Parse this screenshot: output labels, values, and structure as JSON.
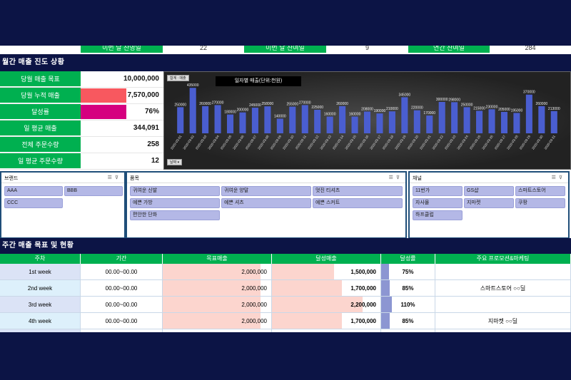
{
  "top_strip": {
    "cells": [
      "이번 달 잔영일",
      "22",
      "이번 달 잔여일",
      "9",
      "연간 잔여일",
      "284"
    ]
  },
  "monthly": {
    "header": "월간 매출 진도 상황",
    "kpis": [
      {
        "label": "당월 매출 목표",
        "value": "10,000,000"
      },
      {
        "label": "당월 누적 매출",
        "value": "7,570,000"
      },
      {
        "label": "달성률",
        "value": "76%"
      },
      {
        "label": "일 평균 매출",
        "value": "344,091"
      },
      {
        "label": "전체 주문수량",
        "value": "258"
      },
      {
        "label": "일 평균 주문수량",
        "value": "12"
      }
    ],
    "cumulative_fill_ratio": 0.757,
    "achievement_fill_ratio": 0.76,
    "colors": {
      "green": "#00b050",
      "red": "#f8585f",
      "magenta": "#d5007f",
      "navy": "#0c1445"
    }
  },
  "chart_data": {
    "type": "bar",
    "title": "일자별 매출(단위:천원)",
    "sum_chip": "합계 : 매출",
    "date_chip": "날짜 ▾",
    "categories": [
      "2020-03-01",
      "2020-03-02",
      "2020-03-03",
      "2020-03-04",
      "2020-03-05",
      "2020-03-06",
      "2020-03-07",
      "2020-03-08",
      "2020-03-09",
      "2020-03-10",
      "2020-03-11",
      "2020-03-12",
      "2020-03-13",
      "2020-03-14",
      "2020-03-15",
      "2020-03-16",
      "2020-03-17",
      "2020-03-18",
      "2020-03-19",
      "2020-03-20",
      "2020-03-21",
      "2020-03-22",
      "2020-03-23",
      "2020-03-24",
      "2020-03-25",
      "2020-03-26",
      "2020-03-27",
      "2020-03-28",
      "2020-03-29",
      "2020-03-30",
      "2020-03-31"
    ],
    "values": [
      250000,
      435000,
      260000,
      270000,
      180000,
      200000,
      245000,
      258000,
      140000,
      255000,
      270000,
      225000,
      160000,
      260000,
      160000,
      208000,
      190000,
      210000,
      345000,
      220000,
      170000,
      300000,
      298000,
      250000,
      215000,
      230000,
      205000,
      195000,
      370000,
      260000,
      213000
    ],
    "labels": [
      "250000",
      "435000",
      "260000",
      "270000",
      "180000",
      "200000",
      "245000",
      "258000",
      "140000",
      "255000",
      "270000",
      "225000",
      "160000",
      "260000",
      "160000",
      "208000",
      "190000",
      "210000",
      "345000",
      "220000",
      "170000",
      "300000",
      "298000",
      "250000",
      "215000",
      "230000",
      "205000",
      "195000",
      "370000",
      "260000",
      "213000"
    ],
    "ylim": [
      0,
      450000
    ],
    "bar_color": "#4a5ed0"
  },
  "slicers": {
    "brand": {
      "title": "브랜드",
      "items": [
        "AAA",
        "BBB",
        "CCC"
      ]
    },
    "product": {
      "title": "품목",
      "items": [
        "귀여운 신발",
        "귀여운 양말",
        "멋진 티셔츠",
        "예쁜 가방",
        "예쁜 셔츠",
        "예쁜 스커트",
        "편안한 단화"
      ]
    },
    "channel": {
      "title": "채널",
      "items": [
        "11번가",
        "GS샵",
        "스마트스토어",
        "자사몰",
        "지마켓",
        "쿠팡",
        "하프클럽"
      ]
    }
  },
  "weekly": {
    "header": "주간 매출 목표 및 현황",
    "columns": [
      "주차",
      "기간",
      "목표매출",
      "달성매출",
      "달성률",
      "주요 프로모션&마케팅"
    ],
    "rows": [
      {
        "week": "1st week",
        "period": "00.00~00.00",
        "target": "2,000,000",
        "achieved": "1,500,000",
        "rate": "75%",
        "rate_value": 0.75,
        "promo": ""
      },
      {
        "week": "2nd week",
        "period": "00.00~00.00",
        "target": "2,000,000",
        "achieved": "1,700,000",
        "rate": "85%",
        "rate_value": 0.85,
        "promo": "스마트스토어 ○○딜"
      },
      {
        "week": "3rd week",
        "period": "00.00~00.00",
        "target": "2,000,000",
        "achieved": "2,200,000",
        "rate": "110%",
        "rate_value": 1.1,
        "promo": ""
      },
      {
        "week": "4th week",
        "period": "00.00~00.00",
        "target": "2,000,000",
        "achieved": "1,700,000",
        "rate": "85%",
        "rate_value": 0.85,
        "promo": "지마켓 ○○딜"
      }
    ]
  }
}
